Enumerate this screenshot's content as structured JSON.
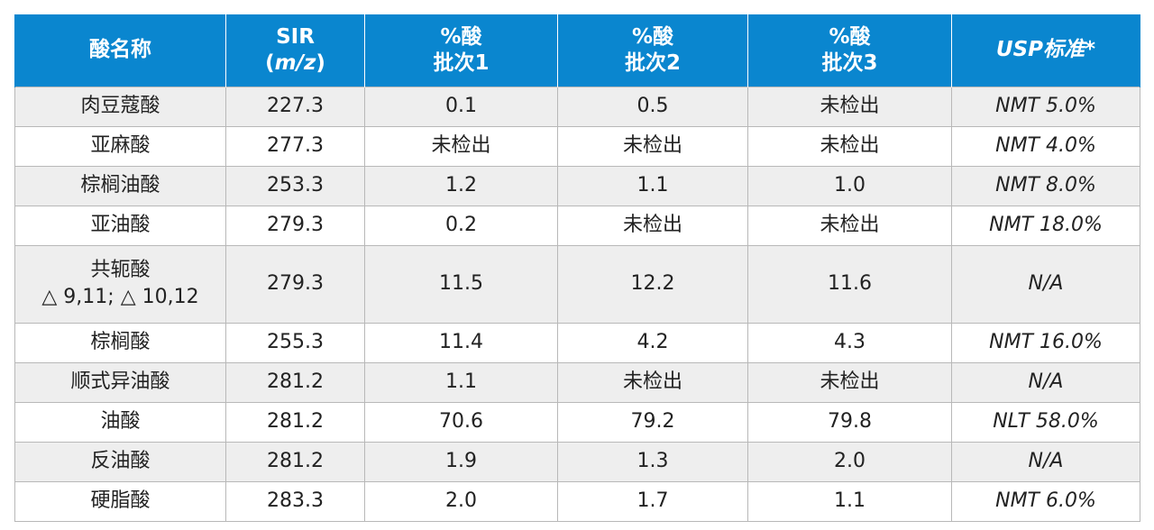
{
  "table": {
    "headers": [
      {
        "lines": [
          "酸名称"
        ]
      },
      {
        "lines": [
          "SIR",
          "(m/z)"
        ]
      },
      {
        "lines": [
          "%酸",
          "批次1"
        ]
      },
      {
        "lines": [
          "%酸",
          "批次2"
        ]
      },
      {
        "lines": [
          "%酸",
          "批次3"
        ]
      },
      {
        "lines": [
          "USP标准*"
        ]
      }
    ],
    "rows": [
      {
        "name": [
          "肉豆蔻酸"
        ],
        "sir": "227.3",
        "batch1": "0.1",
        "batch2": "0.5",
        "batch3": "未检出",
        "usp": "NMT 5.0%"
      },
      {
        "name": [
          "亚麻酸"
        ],
        "sir": "277.3",
        "batch1": "未检出",
        "batch2": "未检出",
        "batch3": "未检出",
        "usp": "NMT 4.0%"
      },
      {
        "name": [
          "棕榈油酸"
        ],
        "sir": "253.3",
        "batch1": "1.2",
        "batch2": "1.1",
        "batch3": "1.0",
        "usp": "NMT 8.0%"
      },
      {
        "name": [
          "亚油酸"
        ],
        "sir": "279.3",
        "batch1": "0.2",
        "batch2": "未检出",
        "batch3": "未检出",
        "usp": "NMT 18.0%"
      },
      {
        "name": [
          "共轭酸",
          "△ 9,11; △ 10,12"
        ],
        "sir": "279.3",
        "batch1": "11.5",
        "batch2": "12.2",
        "batch3": "11.6",
        "usp": "N/A"
      },
      {
        "name": [
          "棕榈酸"
        ],
        "sir": "255.3",
        "batch1": "11.4",
        "batch2": "4.2",
        "batch3": "4.3",
        "usp": "NMT 16.0%"
      },
      {
        "name": [
          "顺式异油酸"
        ],
        "sir": "281.2",
        "batch1": "1.1",
        "batch2": "未检出",
        "batch3": "未检出",
        "usp": "N/A"
      },
      {
        "name": [
          "油酸"
        ],
        "sir": "281.2",
        "batch1": "70.6",
        "batch2": "79.2",
        "batch3": "79.8",
        "usp": "NLT 58.0%"
      },
      {
        "name": [
          "反油酸"
        ],
        "sir": "281.2",
        "batch1": "1.9",
        "batch2": "1.3",
        "batch3": "2.0",
        "usp": "N/A"
      },
      {
        "name": [
          "硬脂酸"
        ],
        "sir": "283.3",
        "batch1": "2.0",
        "batch2": "1.7",
        "batch3": "1.1",
        "usp": "NMT 6.0%"
      }
    ]
  }
}
